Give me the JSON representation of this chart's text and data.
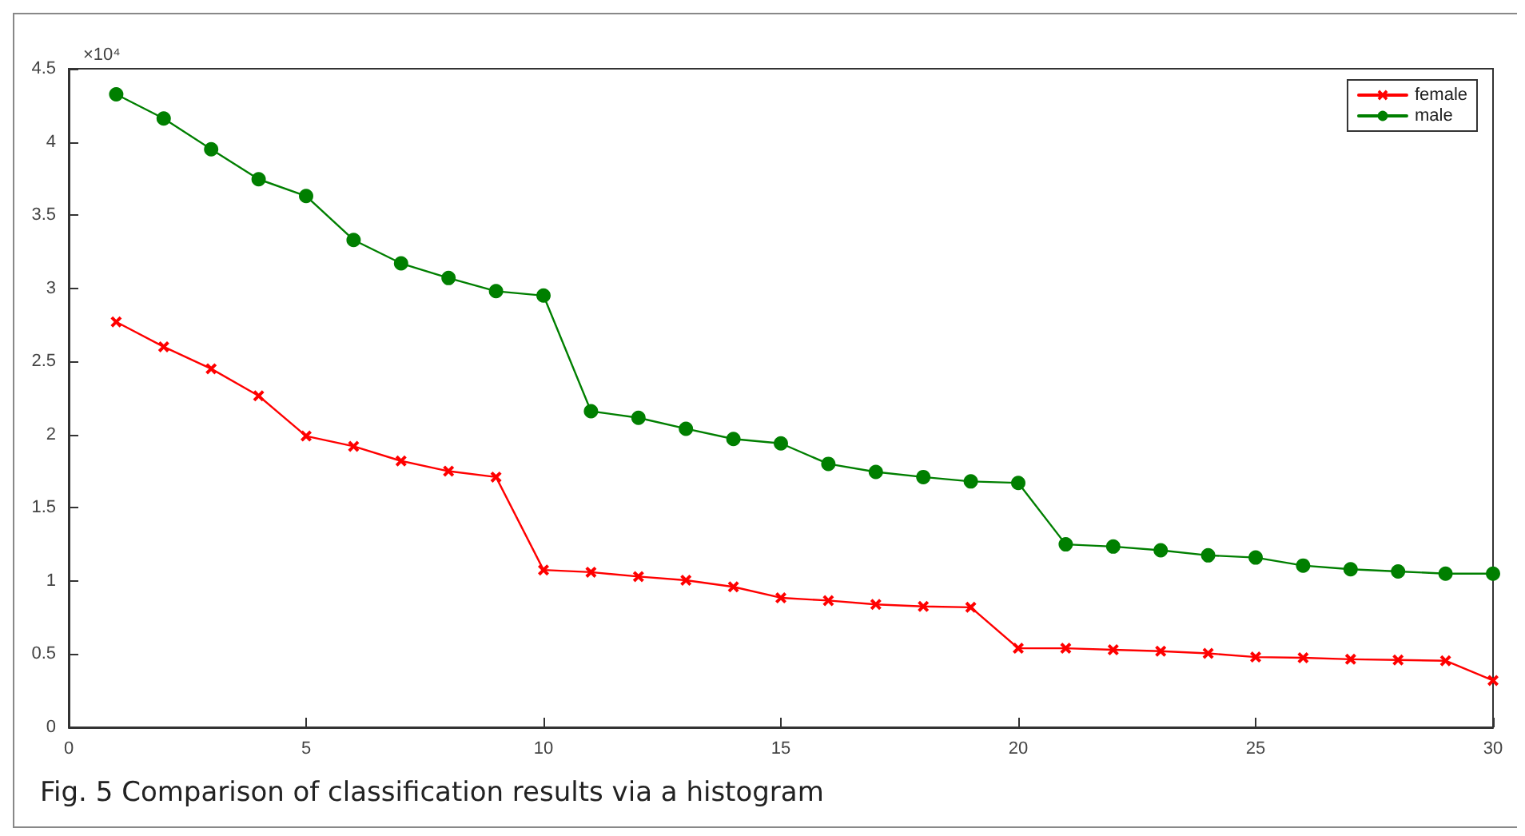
{
  "chart_data": {
    "type": "line",
    "x": [
      1,
      2,
      3,
      4,
      5,
      6,
      7,
      8,
      9,
      10,
      11,
      12,
      13,
      14,
      15,
      16,
      17,
      18,
      19,
      20,
      21,
      22,
      23,
      24,
      25,
      26,
      27,
      28,
      29,
      30
    ],
    "series": [
      {
        "name": "female",
        "color": "#ff0000",
        "marker": "cross",
        "values": [
          2.77,
          2.6,
          2.45,
          2.265,
          1.99,
          1.92,
          1.82,
          1.75,
          1.71,
          1.075,
          1.06,
          1.03,
          1.005,
          0.96,
          0.885,
          0.866,
          0.84,
          0.826,
          0.82,
          0.54,
          0.54,
          0.53,
          0.52,
          0.505,
          0.48,
          0.475,
          0.465,
          0.46,
          0.455,
          0.32
        ]
      },
      {
        "name": "male",
        "color": "#007f00",
        "marker": "circle",
        "values": [
          4.325,
          4.16,
          3.95,
          3.745,
          3.63,
          3.33,
          3.17,
          3.07,
          2.98,
          2.95,
          2.16,
          2.115,
          2.04,
          1.97,
          1.94,
          1.8,
          1.745,
          1.71,
          1.68,
          1.67,
          1.25,
          1.235,
          1.21,
          1.175,
          1.16,
          1.105,
          1.08,
          1.065,
          1.05,
          1.05
        ]
      }
    ],
    "xlim": [
      0,
      30
    ],
    "xticks": [
      0,
      5,
      10,
      15,
      20,
      25,
      30
    ],
    "ylim": [
      0,
      4.5
    ],
    "yticks": [
      0,
      0.5,
      1,
      1.5,
      2,
      2.5,
      3,
      3.5,
      4,
      4.5
    ],
    "annotations": [
      "×10⁴",
      "Fig. 5  Comparison of classification results via a histogram"
    ],
    "legend": "top right",
    "grid": false,
    "line_style": "solid"
  }
}
